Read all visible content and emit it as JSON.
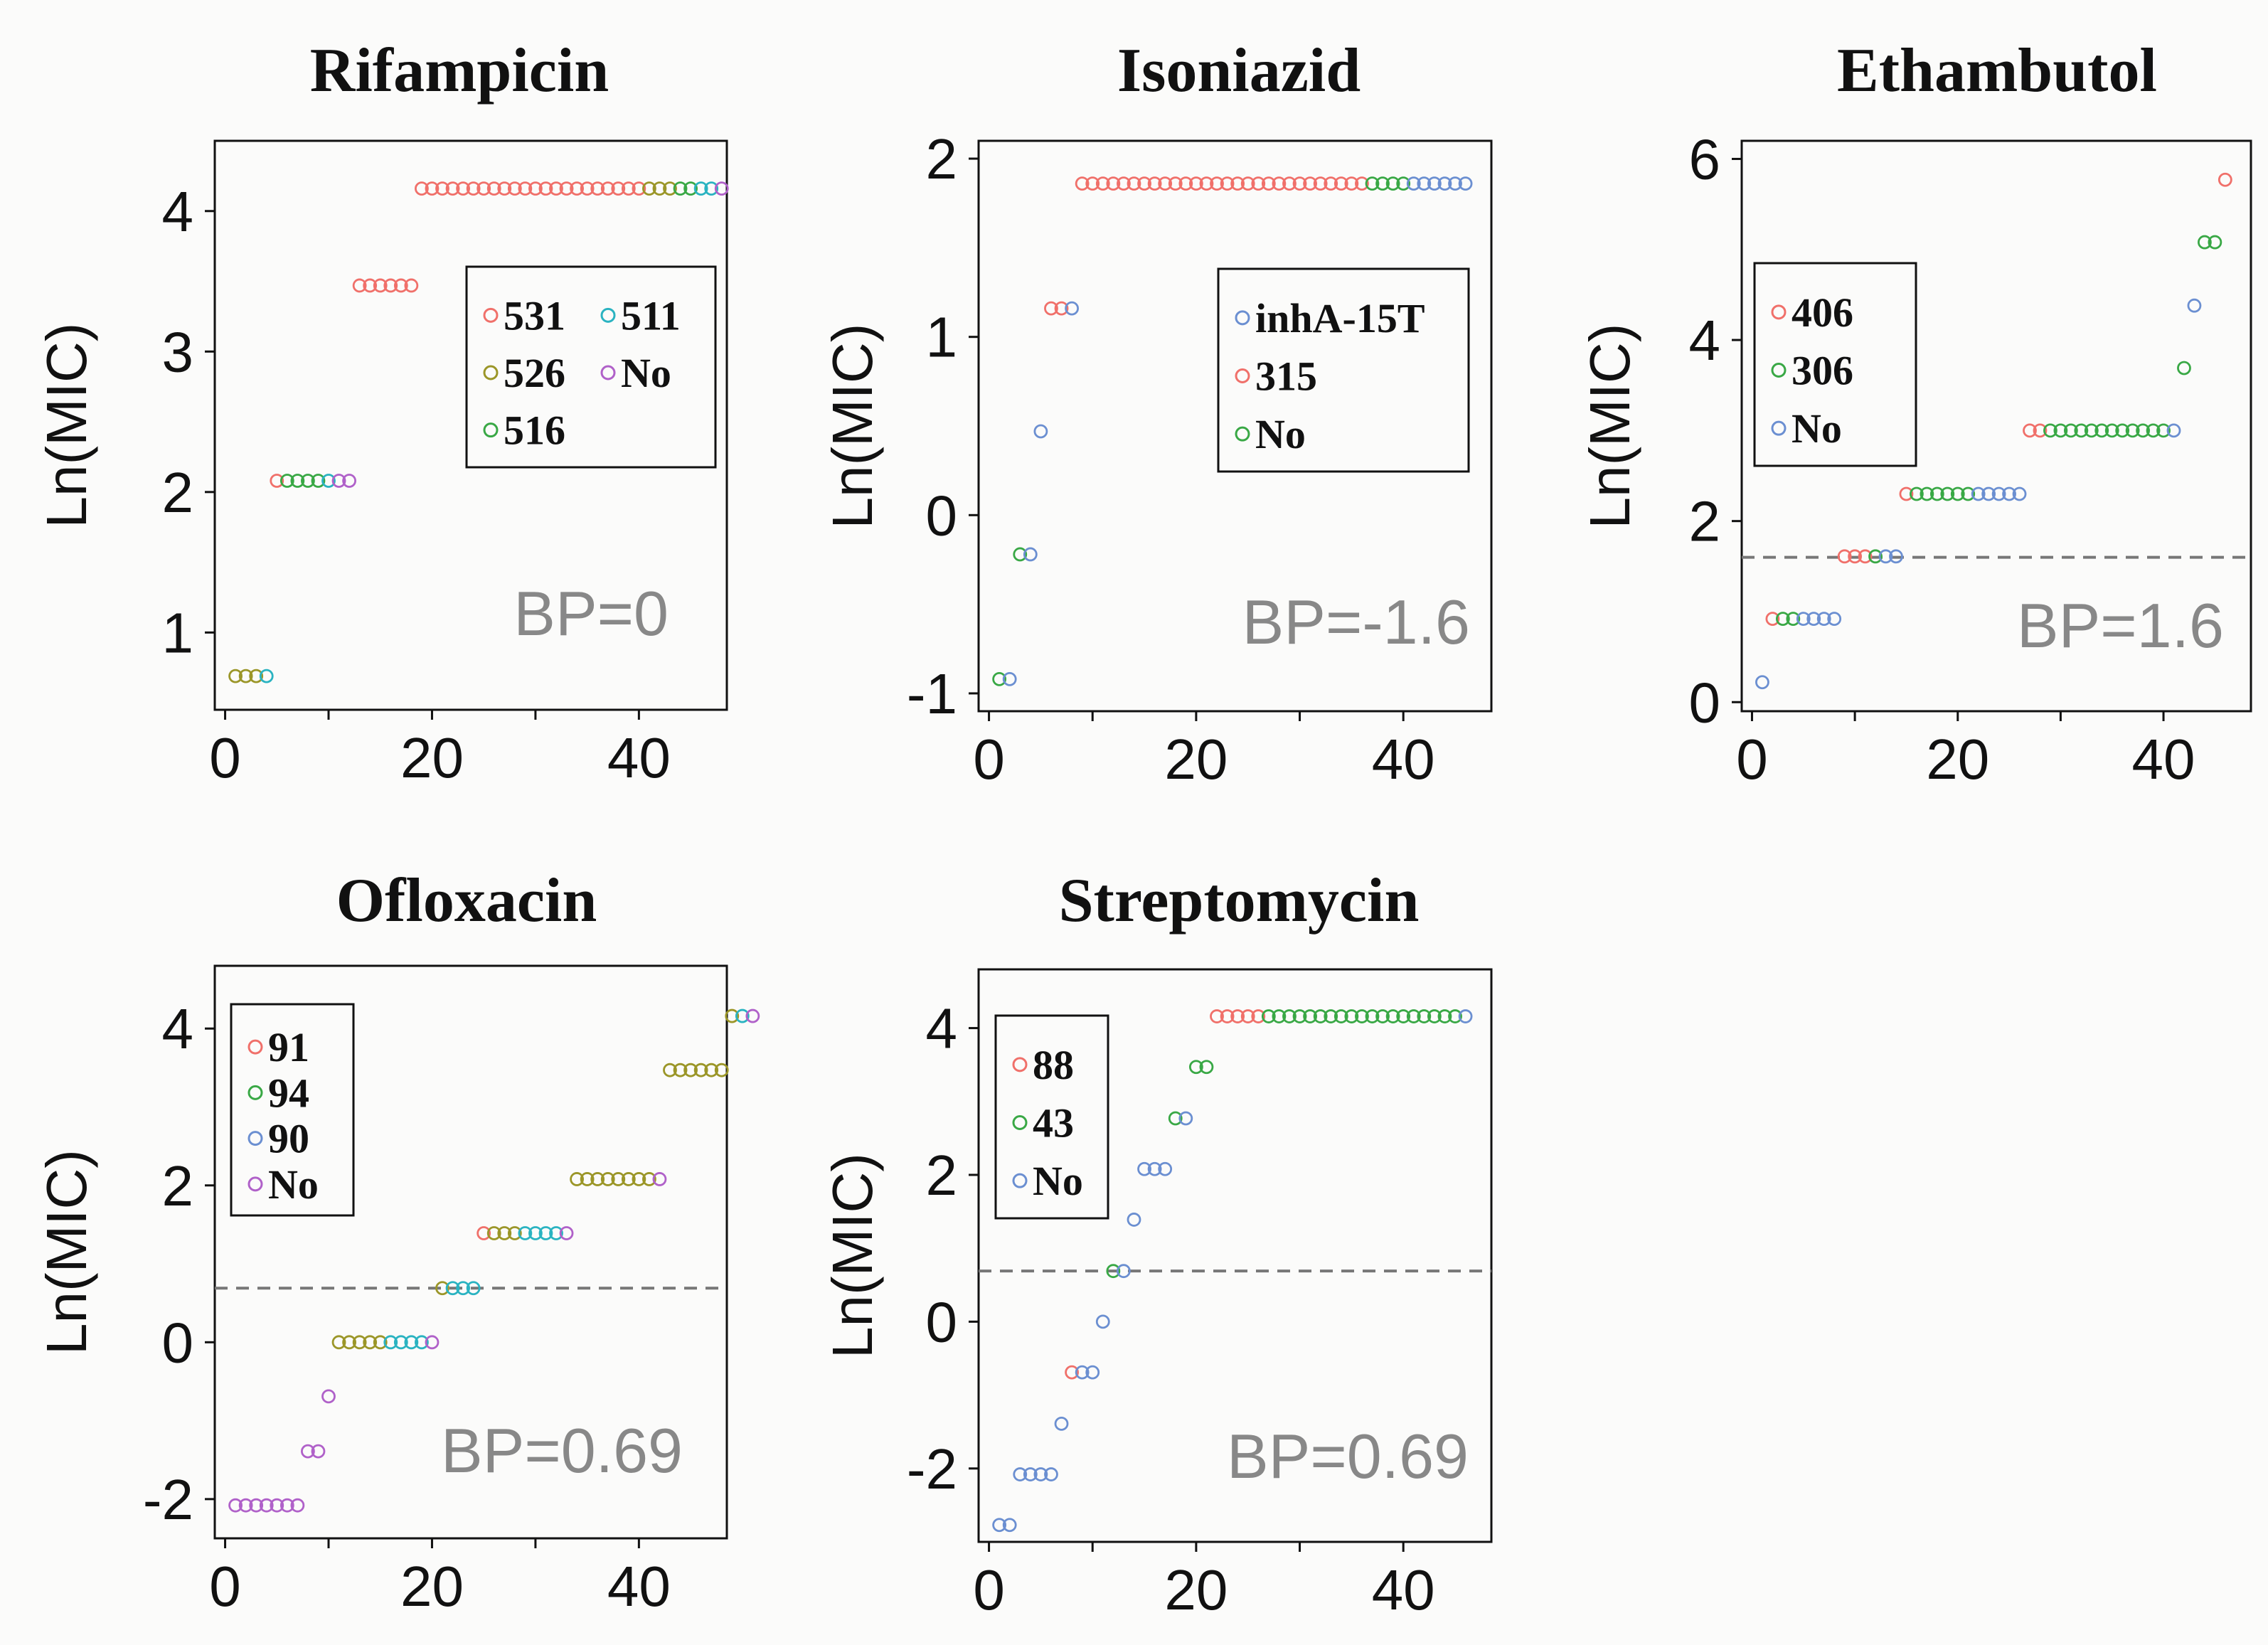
{
  "figure_label": "Ln(MIC) by sample, per drug",
  "colors": {
    "red": "#f0706a",
    "olive": "#9b9628",
    "green": "#39a845",
    "teal": "#2ab3c1",
    "purple": "#b061c9",
    "blue": "#6b8fd1",
    "bp_line": "#777777"
  },
  "chart_data": [
    {
      "type": "scatter",
      "title": "Rifampicin",
      "ylabel": "Ln(MIC)",
      "xlabel": "",
      "xlim": [
        -1,
        48.5
      ],
      "ylim": [
        0.45,
        4.5
      ],
      "xticks": [
        0,
        20,
        40
      ],
      "yticks": [
        1,
        2,
        3,
        4
      ],
      "bp_label": "BP=0",
      "bp_value": 0,
      "legend_loc": "right",
      "legend": [
        {
          "label": "531",
          "color": "red"
        },
        {
          "label": "511",
          "color": "teal"
        },
        {
          "label": "526",
          "color": "olive"
        },
        {
          "label": "No",
          "color": "purple"
        },
        {
          "label": "516",
          "color": "green"
        }
      ],
      "legend_layout": "two-column",
      "groups": [
        {
          "y": 0.69,
          "colors": [
            "olive",
            "olive",
            "olive",
            "teal"
          ]
        },
        {
          "y": 2.08,
          "colors": [
            "red",
            "green",
            "green",
            "green",
            "green",
            "teal",
            "purple",
            "purple"
          ]
        },
        {
          "y": 3.47,
          "colors": [
            "red",
            "red",
            "red",
            "red",
            "red",
            "red"
          ]
        },
        {
          "y": 4.16,
          "colors": [
            "red",
            "red",
            "red",
            "red",
            "red",
            "red",
            "red",
            "red",
            "red",
            "red",
            "red",
            "red",
            "red",
            "red",
            "red",
            "red",
            "red",
            "red",
            "red",
            "red",
            "red",
            "red",
            "olive",
            "olive",
            "olive",
            "green",
            "green",
            "teal",
            "teal",
            "purple"
          ]
        }
      ]
    },
    {
      "type": "scatter",
      "title": "Isoniazid",
      "ylabel": "Ln(MIC)",
      "xlabel": "",
      "xlim": [
        -1,
        48.5
      ],
      "ylim": [
        -1.1,
        2.1
      ],
      "xticks": [
        0,
        20,
        40
      ],
      "yticks": [
        -1,
        0,
        1,
        2
      ],
      "bp_label": "BP=-1.6",
      "bp_value": -1.6,
      "legend_loc": "right",
      "legend": [
        {
          "label": "inhA-15T",
          "color": "blue"
        },
        {
          "label": "315",
          "color": "red"
        },
        {
          "label": "No",
          "color": "green"
        }
      ],
      "legend_layout": "one-column",
      "groups": [
        {
          "y": -0.92,
          "colors": [
            "green",
            "blue"
          ]
        },
        {
          "y": -0.22,
          "colors": [
            "green",
            "blue"
          ]
        },
        {
          "y": 0.47,
          "colors": [
            "blue"
          ]
        },
        {
          "y": 1.16,
          "colors": [
            "red",
            "red",
            "blue"
          ]
        },
        {
          "y": 1.86,
          "colors": [
            "red",
            "red",
            "red",
            "red",
            "red",
            "red",
            "red",
            "red",
            "red",
            "red",
            "red",
            "red",
            "red",
            "red",
            "red",
            "red",
            "red",
            "red",
            "red",
            "red",
            "red",
            "red",
            "red",
            "red",
            "red",
            "red",
            "red",
            "red",
            "green",
            "green",
            "green",
            "green",
            "blue",
            "blue",
            "blue",
            "blue",
            "blue",
            "blue"
          ]
        }
      ]
    },
    {
      "type": "scatter",
      "title": "Ethambutol",
      "ylabel": "Ln(MIC)",
      "xlabel": "",
      "xlim": [
        -1,
        48.5
      ],
      "ylim": [
        -0.1,
        6.2
      ],
      "xticks": [
        0,
        20,
        40
      ],
      "yticks": [
        0,
        2,
        4,
        6
      ],
      "bp_label": "BP=1.6",
      "bp_value": 1.6,
      "legend_loc": "left",
      "legend": [
        {
          "label": "406",
          "color": "red"
        },
        {
          "label": "306",
          "color": "green"
        },
        {
          "label": "No",
          "color": "blue"
        }
      ],
      "legend_layout": "one-column",
      "points": [
        {
          "x": 1,
          "y": 0.22,
          "color": "blue"
        },
        {
          "x": 2,
          "y": 0.92,
          "color": "red"
        },
        {
          "x": 3,
          "y": 0.92,
          "color": "green"
        },
        {
          "x": 4,
          "y": 0.92,
          "color": "green"
        },
        {
          "x": 5,
          "y": 0.92,
          "color": "blue"
        },
        {
          "x": 6,
          "y": 0.92,
          "color": "blue"
        },
        {
          "x": 7,
          "y": 0.92,
          "color": "blue"
        },
        {
          "x": 8,
          "y": 0.92,
          "color": "blue"
        },
        {
          "x": 9,
          "y": 1.61,
          "color": "red"
        },
        {
          "x": 10,
          "y": 1.61,
          "color": "red"
        },
        {
          "x": 11,
          "y": 1.61,
          "color": "red"
        },
        {
          "x": 12,
          "y": 1.61,
          "color": "green"
        },
        {
          "x": 13,
          "y": 1.61,
          "color": "blue"
        },
        {
          "x": 14,
          "y": 1.61,
          "color": "blue"
        },
        {
          "x": 15,
          "y": 2.3,
          "color": "red"
        },
        {
          "x": 16,
          "y": 2.3,
          "color": "green"
        },
        {
          "x": 17,
          "y": 2.3,
          "color": "green"
        },
        {
          "x": 18,
          "y": 2.3,
          "color": "green"
        },
        {
          "x": 19,
          "y": 2.3,
          "color": "green"
        },
        {
          "x": 20,
          "y": 2.3,
          "color": "green"
        },
        {
          "x": 21,
          "y": 2.3,
          "color": "green"
        },
        {
          "x": 22,
          "y": 2.3,
          "color": "blue"
        },
        {
          "x": 23,
          "y": 2.3,
          "color": "blue"
        },
        {
          "x": 24,
          "y": 2.3,
          "color": "blue"
        },
        {
          "x": 25,
          "y": 2.3,
          "color": "blue"
        },
        {
          "x": 26,
          "y": 2.3,
          "color": "blue"
        },
        {
          "x": 27,
          "y": 3.0,
          "color": "red"
        },
        {
          "x": 28,
          "y": 3.0,
          "color": "red"
        },
        {
          "x": 29,
          "y": 3.0,
          "color": "green"
        },
        {
          "x": 30,
          "y": 3.0,
          "color": "green"
        },
        {
          "x": 31,
          "y": 3.0,
          "color": "green"
        },
        {
          "x": 32,
          "y": 3.0,
          "color": "green"
        },
        {
          "x": 33,
          "y": 3.0,
          "color": "green"
        },
        {
          "x": 34,
          "y": 3.0,
          "color": "green"
        },
        {
          "x": 35,
          "y": 3.0,
          "color": "green"
        },
        {
          "x": 36,
          "y": 3.0,
          "color": "green"
        },
        {
          "x": 37,
          "y": 3.0,
          "color": "green"
        },
        {
          "x": 38,
          "y": 3.0,
          "color": "green"
        },
        {
          "x": 39,
          "y": 3.0,
          "color": "green"
        },
        {
          "x": 40,
          "y": 3.0,
          "color": "green"
        },
        {
          "x": 41,
          "y": 3.0,
          "color": "blue"
        },
        {
          "x": 42,
          "y": 3.69,
          "color": "green"
        },
        {
          "x": 43,
          "y": 4.38,
          "color": "blue"
        },
        {
          "x": 44,
          "y": 5.08,
          "color": "green"
        },
        {
          "x": 45,
          "y": 5.08,
          "color": "green"
        },
        {
          "x": 46,
          "y": 5.77,
          "color": "red"
        }
      ]
    },
    {
      "type": "scatter",
      "title": "Ofloxacin",
      "ylabel": "Ln(MIC)",
      "xlabel": "",
      "xlim": [
        -1,
        48.5
      ],
      "ylim": [
        -2.5,
        4.8
      ],
      "xticks": [
        0,
        20,
        40
      ],
      "yticks": [
        -2,
        0,
        2,
        4
      ],
      "bp_label": "BP=0.69",
      "bp_value": 0.69,
      "legend_loc": "left",
      "legend": [
        {
          "label": "91",
          "color": "red"
        },
        {
          "label": "94",
          "color": "green"
        },
        {
          "label": "90",
          "color": "blue"
        },
        {
          "label": "No",
          "color": "purple"
        }
      ],
      "legend_layout": "one-column",
      "groups": [
        {
          "y": -2.08,
          "colors": [
            "purple",
            "purple",
            "purple",
            "purple",
            "purple",
            "purple",
            "purple"
          ]
        },
        {
          "y": -1.39,
          "colors": [
            "purple",
            "purple"
          ]
        },
        {
          "y": -0.69,
          "colors": [
            "purple"
          ]
        },
        {
          "y": 0.0,
          "colors": [
            "olive",
            "olive",
            "olive",
            "olive",
            "olive",
            "teal",
            "teal",
            "teal",
            "teal",
            "purple"
          ]
        },
        {
          "y": 0.69,
          "colors": [
            "olive",
            "teal",
            "teal",
            "teal"
          ]
        },
        {
          "y": 1.39,
          "colors": [
            "red",
            "olive",
            "olive",
            "olive",
            "teal",
            "teal",
            "teal",
            "teal",
            "purple"
          ]
        },
        {
          "y": 2.08,
          "colors": [
            "olive",
            "olive",
            "olive",
            "olive",
            "olive",
            "olive",
            "olive",
            "olive",
            "purple"
          ]
        },
        {
          "y": 3.47,
          "colors": [
            "olive",
            "olive",
            "olive",
            "olive",
            "olive",
            "olive"
          ]
        },
        {
          "y": 4.16,
          "colors": [
            "olive",
            "teal",
            "purple"
          ]
        }
      ]
    },
    {
      "type": "scatter",
      "title": "Streptomycin",
      "ylabel": "Ln(MIC)",
      "xlabel": "",
      "xlim": [
        -1,
        48.5
      ],
      "ylim": [
        -3.0,
        4.8
      ],
      "xticks": [
        0,
        20,
        40
      ],
      "yticks": [
        -2,
        0,
        2,
        4
      ],
      "bp_label": "BP=0.69",
      "bp_value": 0.69,
      "legend_loc": "left",
      "legend": [
        {
          "label": "88",
          "color": "red"
        },
        {
          "label": "43",
          "color": "green"
        },
        {
          "label": "No",
          "color": "blue"
        }
      ],
      "legend_layout": "one-column",
      "points": [
        {
          "x": 1,
          "y": -2.77,
          "color": "blue"
        },
        {
          "x": 2,
          "y": -2.77,
          "color": "blue"
        },
        {
          "x": 3,
          "y": -2.08,
          "color": "blue"
        },
        {
          "x": 4,
          "y": -2.08,
          "color": "blue"
        },
        {
          "x": 5,
          "y": -2.08,
          "color": "blue"
        },
        {
          "x": 6,
          "y": -2.08,
          "color": "blue"
        },
        {
          "x": 7,
          "y": -1.39,
          "color": "blue"
        },
        {
          "x": 8,
          "y": -0.69,
          "color": "red"
        },
        {
          "x": 9,
          "y": -0.69,
          "color": "blue"
        },
        {
          "x": 10,
          "y": -0.69,
          "color": "blue"
        },
        {
          "x": 11,
          "y": 0.0,
          "color": "blue"
        },
        {
          "x": 12,
          "y": 0.69,
          "color": "green"
        },
        {
          "x": 13,
          "y": 0.69,
          "color": "blue"
        },
        {
          "x": 14,
          "y": 1.39,
          "color": "blue"
        },
        {
          "x": 15,
          "y": 2.08,
          "color": "blue"
        },
        {
          "x": 16,
          "y": 2.08,
          "color": "blue"
        },
        {
          "x": 17,
          "y": 2.08,
          "color": "blue"
        },
        {
          "x": 18,
          "y": 2.77,
          "color": "green"
        },
        {
          "x": 19,
          "y": 2.77,
          "color": "blue"
        },
        {
          "x": 20,
          "y": 3.47,
          "color": "green"
        },
        {
          "x": 21,
          "y": 3.47,
          "color": "green"
        },
        {
          "x": 22,
          "y": 4.16,
          "color": "red"
        },
        {
          "x": 23,
          "y": 4.16,
          "color": "red"
        },
        {
          "x": 24,
          "y": 4.16,
          "color": "red"
        },
        {
          "x": 25,
          "y": 4.16,
          "color": "red"
        },
        {
          "x": 26,
          "y": 4.16,
          "color": "red"
        },
        {
          "x": 27,
          "y": 4.16,
          "color": "green"
        },
        {
          "x": 28,
          "y": 4.16,
          "color": "green"
        },
        {
          "x": 29,
          "y": 4.16,
          "color": "green"
        },
        {
          "x": 30,
          "y": 4.16,
          "color": "green"
        },
        {
          "x": 31,
          "y": 4.16,
          "color": "green"
        },
        {
          "x": 32,
          "y": 4.16,
          "color": "green"
        },
        {
          "x": 33,
          "y": 4.16,
          "color": "green"
        },
        {
          "x": 34,
          "y": 4.16,
          "color": "green"
        },
        {
          "x": 35,
          "y": 4.16,
          "color": "green"
        },
        {
          "x": 36,
          "y": 4.16,
          "color": "green"
        },
        {
          "x": 37,
          "y": 4.16,
          "color": "green"
        },
        {
          "x": 38,
          "y": 4.16,
          "color": "green"
        },
        {
          "x": 39,
          "y": 4.16,
          "color": "green"
        },
        {
          "x": 40,
          "y": 4.16,
          "color": "green"
        },
        {
          "x": 41,
          "y": 4.16,
          "color": "green"
        },
        {
          "x": 42,
          "y": 4.16,
          "color": "green"
        },
        {
          "x": 43,
          "y": 4.16,
          "color": "green"
        },
        {
          "x": 44,
          "y": 4.16,
          "color": "green"
        },
        {
          "x": 45,
          "y": 4.16,
          "color": "green"
        },
        {
          "x": 46,
          "y": 4.16,
          "color": "blue"
        }
      ]
    }
  ]
}
